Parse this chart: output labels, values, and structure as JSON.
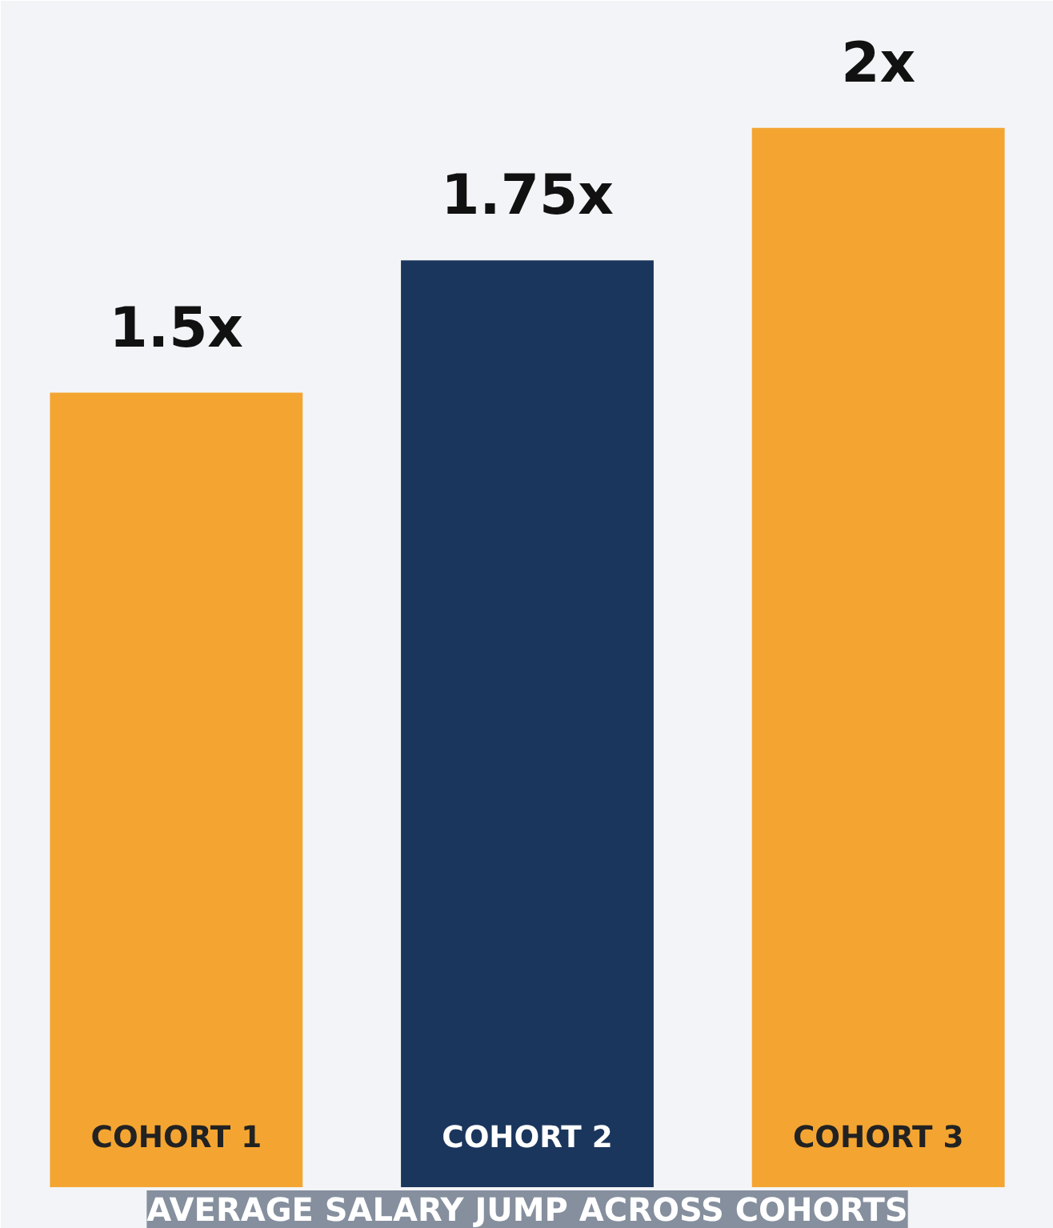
{
  "chart_data": {
    "type": "bar",
    "title": "AVERAGE SALARY JUMP ACROSS COHORTS",
    "categories": [
      "COHORT 1",
      "COHORT 2",
      "COHORT 3"
    ],
    "values": [
      1.5,
      1.75,
      2
    ],
    "value_labels": [
      "1.5x",
      "1.75x",
      "2x"
    ],
    "colors": [
      "#f4a531",
      "#1b365d",
      "#f4a531"
    ],
    "grid": false,
    "tick_labels": false
  }
}
